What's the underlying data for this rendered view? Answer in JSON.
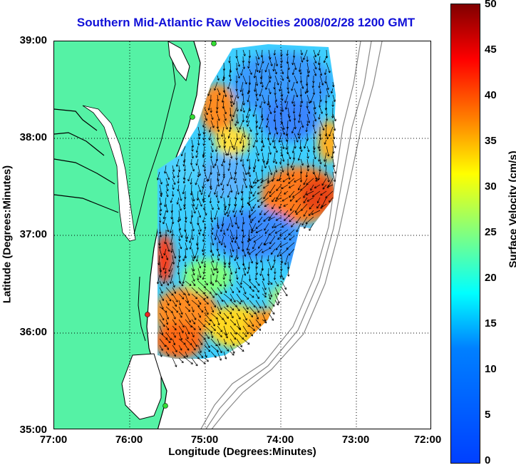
{
  "map": {
    "title": "Southern Mid-Atlantic Raw Velocities 2008/02/28 1200 GMT",
    "xlabel": "Longitude (Degrees:Minutes)",
    "ylabel": "Latitude (Degrees:Minutes)",
    "x_ticks": [
      "77:00",
      "76:00",
      "75:00",
      "74:00",
      "73:00",
      "72:00"
    ],
    "y_ticks": [
      "39:00",
      "38:00",
      "37:00",
      "36:00",
      "35:00"
    ],
    "colorbar": {
      "label": "Surface Velocity (cm/s)",
      "ticks": [
        "50",
        "45",
        "40",
        "35",
        "30",
        "25",
        "20",
        "15",
        "10",
        "5",
        "0"
      ],
      "range": [
        0,
        50
      ],
      "colormap": "jet"
    },
    "extent": {
      "lon": [
        -77,
        -72
      ],
      "lat": [
        35,
        39
      ]
    },
    "colors": {
      "land": "#55f2a5",
      "title": "#1010d8",
      "station": "#33dd33",
      "station_red": "#ee2222"
    },
    "stations": [
      {
        "lon": -74.93,
        "lat": 38.98,
        "color": "green"
      },
      {
        "lon": -75.1,
        "lat": 38.22,
        "color": "green"
      },
      {
        "lon": -75.75,
        "lat": 36.18,
        "color": "red"
      },
      {
        "lon": -75.52,
        "lat": 35.25,
        "color": "green"
      }
    ]
  }
}
